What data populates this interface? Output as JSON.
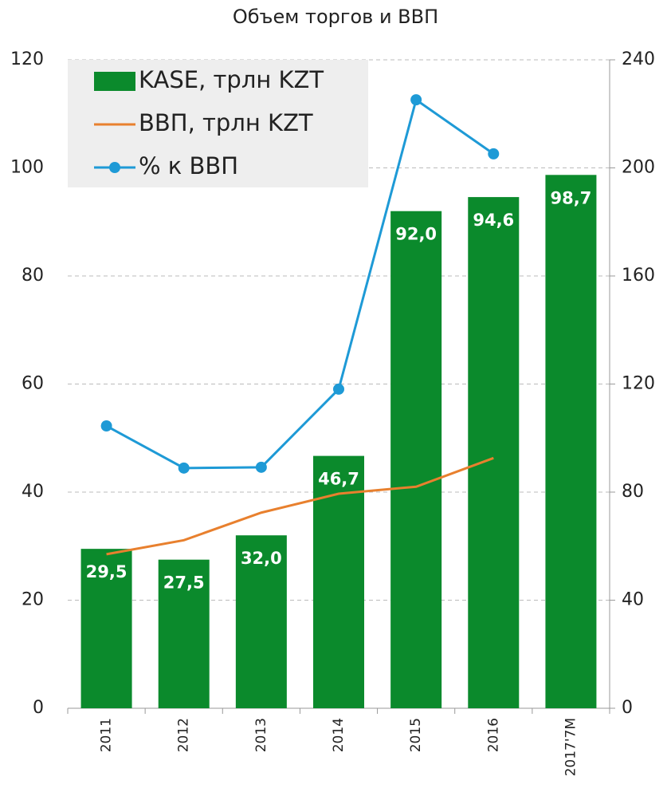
{
  "chart_data": {
    "type": "bar",
    "title": "Объем торгов и ВВП",
    "categories": [
      "2011",
      "2012",
      "2013",
      "2014",
      "2015",
      "2016",
      "2017'7M"
    ],
    "series": [
      {
        "name": "KASE, трлн KZT",
        "type": "bar",
        "color": "#0b8a2c",
        "axis": "y",
        "values": [
          29.5,
          27.5,
          32.0,
          46.7,
          92.0,
          94.6,
          98.7
        ],
        "value_labels": [
          "29,5",
          "27,5",
          "32,0",
          "46,7",
          "92,0",
          "94,6",
          "98,7"
        ]
      },
      {
        "name": "ВВП, трлн KZT",
        "type": "line",
        "color": "#e8802e",
        "axis": "y",
        "values": [
          28.5,
          31.1,
          36.2,
          39.7,
          41.0,
          46.3,
          null
        ]
      },
      {
        "name": "% к ВВП",
        "type": "line",
        "markers": true,
        "color": "#1e9ad6",
        "axis": "y2",
        "values": [
          104.5,
          88.9,
          89.2,
          118.1,
          225.2,
          205.2,
          null
        ]
      }
    ],
    "ylim": [
      0,
      120
    ],
    "yticks": [
      0,
      20,
      40,
      60,
      80,
      100,
      120
    ],
    "y2lim": [
      0,
      240
    ],
    "y2ticks": [
      0,
      40,
      80,
      120,
      160,
      200,
      240
    ],
    "grid": true,
    "legend": "upper left"
  }
}
